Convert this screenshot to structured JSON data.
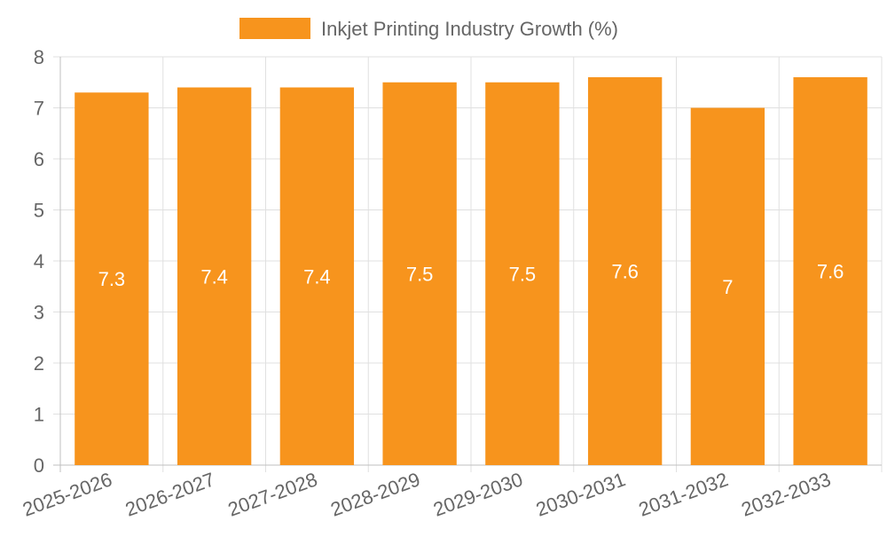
{
  "chart_data": {
    "type": "bar",
    "legend": {
      "position": "top-center",
      "entries": [
        {
          "label": "Inkjet Printing Industry Growth (%)",
          "color": "#f7941d"
        }
      ]
    },
    "categories": [
      "2025-2026",
      "2026-2027",
      "2027-2028",
      "2028-2029",
      "2029-2030",
      "2030-2031",
      "2031-2032",
      "2032-2033"
    ],
    "series": [
      {
        "name": "Inkjet Printing Industry Growth (%)",
        "color": "#f7941d",
        "values": [
          7.3,
          7.4,
          7.4,
          7.5,
          7.5,
          7.6,
          7,
          7.6
        ],
        "value_labels": [
          "7.3",
          "7.4",
          "7.4",
          "7.5",
          "7.5",
          "7.6",
          "7",
          "7.6"
        ]
      }
    ],
    "ylim": [
      0,
      8
    ],
    "yticks": [
      "0",
      "1",
      "2",
      "3",
      "4",
      "5",
      "6",
      "7",
      "8"
    ],
    "grid": true,
    "colors": {
      "bar": "#f7941d",
      "grid": "#e0e0e0",
      "axis": "#bfbfbf",
      "text": "#666666",
      "bar_label": "#ffffff"
    }
  }
}
